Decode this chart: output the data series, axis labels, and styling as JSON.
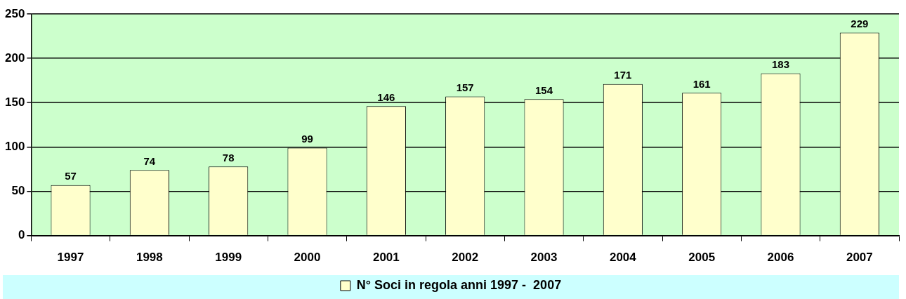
{
  "chart_data": {
    "type": "bar",
    "categories": [
      "1997",
      "1998",
      "1999",
      "2000",
      "2001",
      "2002",
      "2003",
      "2004",
      "2005",
      "2006",
      "2007"
    ],
    "series": [
      {
        "name": "N° Soci in regola anni 1997 -  2007",
        "color": "#ffffcc",
        "values": [
          57,
          74,
          78,
          99,
          146,
          157,
          154,
          171,
          161,
          183,
          229
        ]
      }
    ],
    "ylim": [
      0,
      250
    ],
    "yticks": [
      0,
      50,
      100,
      150,
      200,
      250
    ],
    "grid": "y",
    "legend": "bottom",
    "data_labels": true
  }
}
